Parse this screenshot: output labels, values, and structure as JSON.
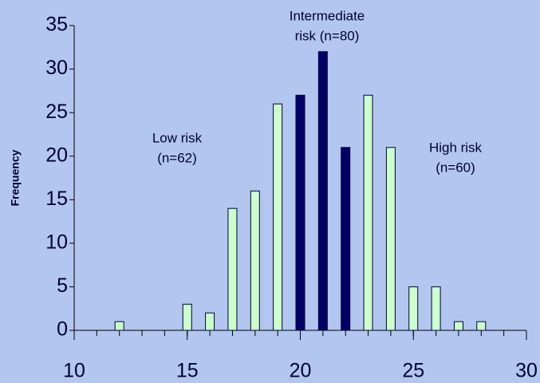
{
  "chart_data": {
    "type": "bar",
    "y_label": "Frequency",
    "x": [
      12,
      15,
      16,
      17,
      18,
      19,
      20,
      21,
      22,
      23,
      24,
      25,
      26,
      27,
      28
    ],
    "values": [
      1,
      3,
      2,
      14,
      16,
      26,
      27,
      32,
      21,
      27,
      21,
      5,
      5,
      1,
      1
    ],
    "colors": [
      "#ccffcc",
      "#ccffcc",
      "#ccffcc",
      "#ccffcc",
      "#ccffcc",
      "#ccffcc",
      "#000066",
      "#000066",
      "#000066",
      "#ccffcc",
      "#ccffcc",
      "#ccffcc",
      "#ccffcc",
      "#ccffcc",
      "#ccffcc"
    ],
    "xlim": [
      10,
      30
    ],
    "xticks": [
      10,
      15,
      20,
      25,
      30
    ],
    "xminorticks": [
      10,
      11,
      12,
      13,
      14,
      15,
      16,
      17,
      18,
      19,
      20,
      21,
      22,
      23,
      24,
      25,
      26,
      27,
      28,
      29,
      30
    ],
    "ylim": [
      0,
      35
    ],
    "yticks": [
      0,
      5,
      10,
      15,
      20,
      25,
      30,
      35
    ],
    "annotations": [
      [
        "Low risk",
        "(n=62)"
      ],
      [
        "Intermediate",
        "risk (n=80)"
      ],
      [
        "High risk",
        "(n=60)"
      ]
    ]
  }
}
